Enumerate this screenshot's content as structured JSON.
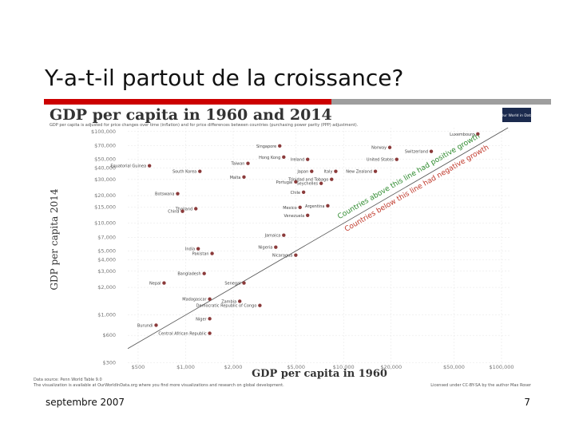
{
  "slide": {
    "title": "Y-a-t-il partout de la croissance?",
    "footer": "septembre 2007",
    "page_number": "7"
  },
  "chart_data": {
    "type": "scatter",
    "title": "GDP per capita in 1960 and 2014",
    "subtitle": "GDP per capita is adjusted for price changes over time (inflation) and for price differences between countries (purchasing power parity (PPP) adjustment).",
    "logo": "Our World in Data",
    "x_label": "GDP per capita in 1960",
    "y_label": "GDP per capita 2014",
    "annotation_above": "Countries above this line had positive growth",
    "annotation_below": "Countries below this line had negative growth",
    "source": "Data source: Penn World Table 9.0",
    "note": "The visualization is available at OurWorldInData.org where you find more visualizations and research on global development.",
    "license": "Licensed under CC-BY-SA by the author Max Roser",
    "log_x": true,
    "log_y": true,
    "color": "#8b3a3a",
    "xlim": [
      430,
      115000
    ],
    "ylim": [
      270,
      110000
    ],
    "xticks": [
      {
        "value": 500,
        "label": "$500"
      },
      {
        "value": 1000,
        "label": "$1,000"
      },
      {
        "value": 2000,
        "label": "$2,000"
      },
      {
        "value": 5000,
        "label": "$5,000"
      },
      {
        "value": 10000,
        "label": "$10,000"
      },
      {
        "value": 20000,
        "label": "$20,000"
      },
      {
        "value": 50000,
        "label": "$50,000"
      },
      {
        "value": 100000,
        "label": "$100,000"
      }
    ],
    "yticks": [
      {
        "value": 300,
        "label": "$300"
      },
      {
        "value": 600,
        "label": "$600"
      },
      {
        "value": 1000,
        "label": "$1,000"
      },
      {
        "value": 2000,
        "label": "$2,000"
      },
      {
        "value": 3000,
        "label": "$3,000"
      },
      {
        "value": 4000,
        "label": "$4,000"
      },
      {
        "value": 5000,
        "label": "$5,000"
      },
      {
        "value": 7000,
        "label": "$7,000"
      },
      {
        "value": 10000,
        "label": "$10,000"
      },
      {
        "value": 15000,
        "label": "$15,000"
      },
      {
        "value": 20000,
        "label": "$20,000"
      },
      {
        "value": 30000,
        "label": "$30,000"
      },
      {
        "value": 40000,
        "label": "$40,000"
      },
      {
        "value": 50000,
        "label": "$50,000"
      },
      {
        "value": 70000,
        "label": "$70,000"
      },
      {
        "value": 100000,
        "label": "$100,000"
      }
    ],
    "labels": [
      "Luxembourg",
      "Singapore",
      "Norway",
      "Switzerland",
      "Hong Kong",
      "Ireland",
      "United States",
      "Equatorial Guinea",
      "Taiwan",
      "Japan",
      "Italy",
      "New Zealand",
      "South Korea",
      "Malta",
      "Portugal",
      "Chile",
      "Botswana",
      "Trinidad and Tobago",
      "Seychelles",
      "Mexico",
      "Argentina",
      "Venezuela",
      "Thailand",
      "China",
      "Jamaica",
      "India",
      "Pakistan",
      "Nigeria",
      "Nicaragua",
      "Bangladesh",
      "Senegal",
      "Zambia",
      "Democratic Republic of Congo",
      "Nepal",
      "Madagascar",
      "Niger",
      "Central African Republic",
      "Burundi"
    ],
    "x": [
      70800,
      3940,
      19600,
      35900,
      4180,
      5920,
      21700,
      590,
      2480,
      6280,
      8920,
      15900,
      1230,
      2340,
      4980,
      5580,
      890,
      8400,
      7210,
      5300,
      7940,
      5920,
      1160,
      955,
      4180,
      1200,
      1470,
      3720,
      4980,
      1310,
      2340,
      2200,
      2950,
      730,
      1420,
      1420,
      1420,
      650
    ],
    "y": [
      94000,
      69600,
      67000,
      60700,
      52600,
      49700,
      49700,
      42300,
      44900,
      36800,
      36800,
      36800,
      36800,
      31900,
      28300,
      21800,
      21000,
      30100,
      27200,
      14900,
      15500,
      12200,
      14400,
      13500,
      7400,
      5270,
      4680,
      5480,
      4490,
      2830,
      2230,
      1410,
      1270,
      2230,
      1490,
      910,
      632,
      774
    ]
  }
}
